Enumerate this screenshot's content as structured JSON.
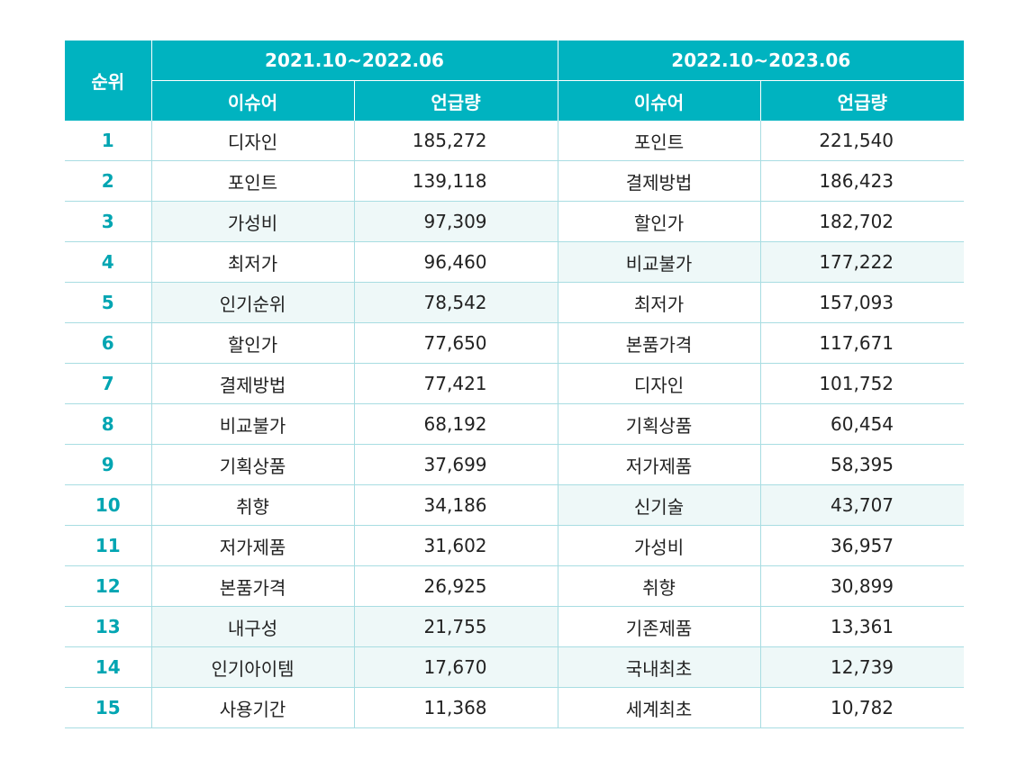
{
  "header": {
    "rank_label": "순위",
    "period1": "2021.10~2022.06",
    "period2": "2022.10~2023.06",
    "issue_label": "이슈어",
    "count_label": "언급량"
  },
  "highlight_color": "#eef8f8",
  "header_color": "#00b3c0",
  "rows": [
    {
      "rank": "1",
      "issue1": "디자인",
      "count1": "185,272",
      "issue2": "포인트",
      "count2": "221,540",
      "hl1": false,
      "hl2": false
    },
    {
      "rank": "2",
      "issue1": "포인트",
      "count1": "139,118",
      "issue2": "결제방법",
      "count2": "186,423",
      "hl1": false,
      "hl2": false
    },
    {
      "rank": "3",
      "issue1": "가성비",
      "count1": "97,309",
      "issue2": "할인가",
      "count2": "182,702",
      "hl1": true,
      "hl2": false
    },
    {
      "rank": "4",
      "issue1": "최저가",
      "count1": "96,460",
      "issue2": "비교불가",
      "count2": "177,222",
      "hl1": false,
      "hl2": true
    },
    {
      "rank": "5",
      "issue1": "인기순위",
      "count1": "78,542",
      "issue2": "최저가",
      "count2": "157,093",
      "hl1": true,
      "hl2": false
    },
    {
      "rank": "6",
      "issue1": "할인가",
      "count1": "77,650",
      "issue2": "본품가격",
      "count2": "117,671",
      "hl1": false,
      "hl2": false
    },
    {
      "rank": "7",
      "issue1": "결제방법",
      "count1": "77,421",
      "issue2": "디자인",
      "count2": "101,752",
      "hl1": false,
      "hl2": false
    },
    {
      "rank": "8",
      "issue1": "비교불가",
      "count1": "68,192",
      "issue2": "기획상품",
      "count2": "60,454",
      "hl1": false,
      "hl2": false
    },
    {
      "rank": "9",
      "issue1": "기획상품",
      "count1": "37,699",
      "issue2": "저가제품",
      "count2": "58,395",
      "hl1": false,
      "hl2": false
    },
    {
      "rank": "10",
      "issue1": "취향",
      "count1": "34,186",
      "issue2": "신기술",
      "count2": "43,707",
      "hl1": false,
      "hl2": true
    },
    {
      "rank": "11",
      "issue1": "저가제품",
      "count1": "31,602",
      "issue2": "가성비",
      "count2": "36,957",
      "hl1": false,
      "hl2": false
    },
    {
      "rank": "12",
      "issue1": "본품가격",
      "count1": "26,925",
      "issue2": "취향",
      "count2": "30,899",
      "hl1": false,
      "hl2": false
    },
    {
      "rank": "13",
      "issue1": "내구성",
      "count1": "21,755",
      "issue2": "기존제품",
      "count2": "13,361",
      "hl1": true,
      "hl2": false
    },
    {
      "rank": "14",
      "issue1": "인기아이템",
      "count1": "17,670",
      "issue2": "국내최초",
      "count2": "12,739",
      "hl1": true,
      "hl2": true
    },
    {
      "rank": "15",
      "issue1": "사용기간",
      "count1": "11,368",
      "issue2": "세계최초",
      "count2": "10,782",
      "hl1": false,
      "hl2": false
    }
  ]
}
